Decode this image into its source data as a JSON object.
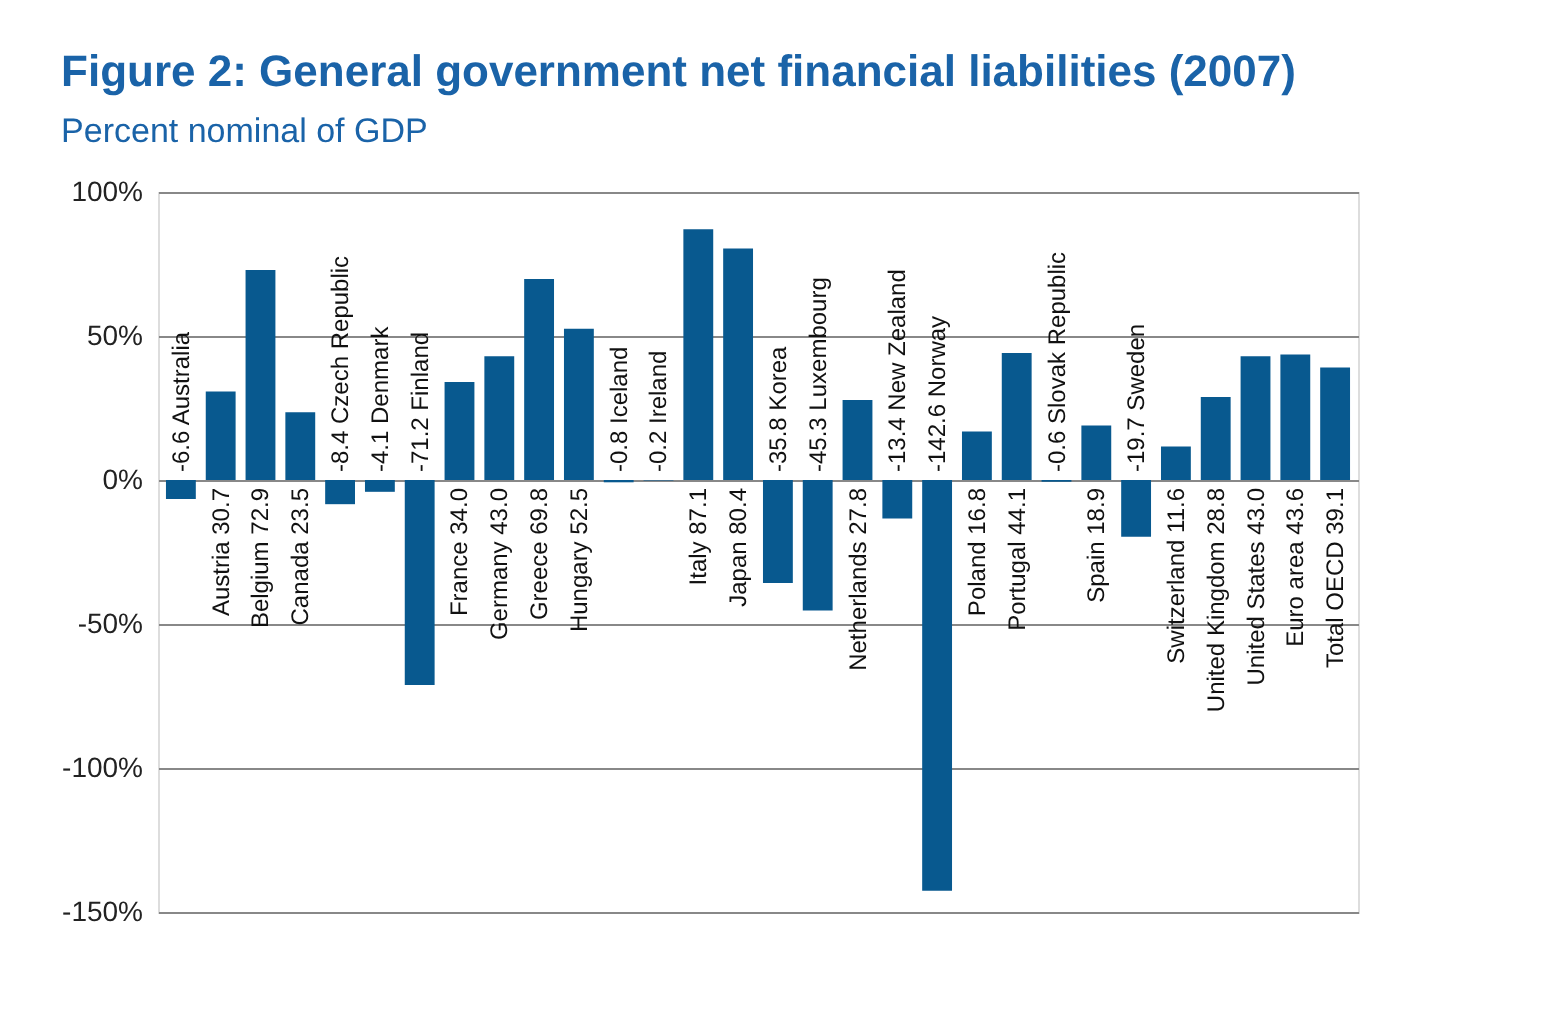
{
  "chart_data": {
    "type": "bar",
    "title": "Figure 2: General government net financial liabilities (2007)",
    "subtitle": "Percent nominal of GDP",
    "categories": [
      "-6.6 Australia",
      "Austria 30.7",
      "Belgium 72.9",
      "Canada 23.5",
      "-8.4 Czech Republic",
      "-4.1 Denmark",
      "-71.2 Finland",
      "France 34.0",
      "Germany 43.0",
      "Greece 69.8",
      "Hungary 52.5",
      "-0.8 Iceland",
      "-0.2 Ireland",
      "Italy 87.1",
      "Japan 80.4",
      "-35.8 Korea",
      "-45.3 Luxembourg",
      "Netherlands 27.8",
      "-13.4 New Zealand",
      "-142.6 Norway",
      "Poland 16.8",
      "Portugal 44.1",
      "-0.6 Slovak Republic",
      "Spain 18.9",
      "-19.7 Sweden",
      "Switzerland 11.6",
      "United Kingdom 28.8",
      "United States 43.0",
      "Euro area 43.6",
      "Total OECD 39.1"
    ],
    "values": [
      -6.6,
      30.7,
      72.9,
      23.5,
      -8.4,
      -4.1,
      -71.2,
      34.0,
      43.0,
      69.8,
      52.5,
      -0.8,
      -0.2,
      87.1,
      80.4,
      -35.8,
      -45.3,
      27.8,
      -13.4,
      -142.6,
      16.8,
      44.1,
      -0.6,
      18.9,
      -19.7,
      11.6,
      28.8,
      43.0,
      43.6,
      39.1
    ],
    "color": "#08598f",
    "tick_labels": "y",
    "grid": "y",
    "ylim": [
      -150,
      100
    ],
    "yticks": [
      {
        "value": -150,
        "label": "-150%"
      },
      {
        "value": -100,
        "label": "-100%"
      },
      {
        "value": -50,
        "label": "-50%"
      },
      {
        "value": 0,
        "label": "0%"
      },
      {
        "value": 50,
        "label": "50%"
      },
      {
        "value": 100,
        "label": "100%"
      }
    ]
  }
}
